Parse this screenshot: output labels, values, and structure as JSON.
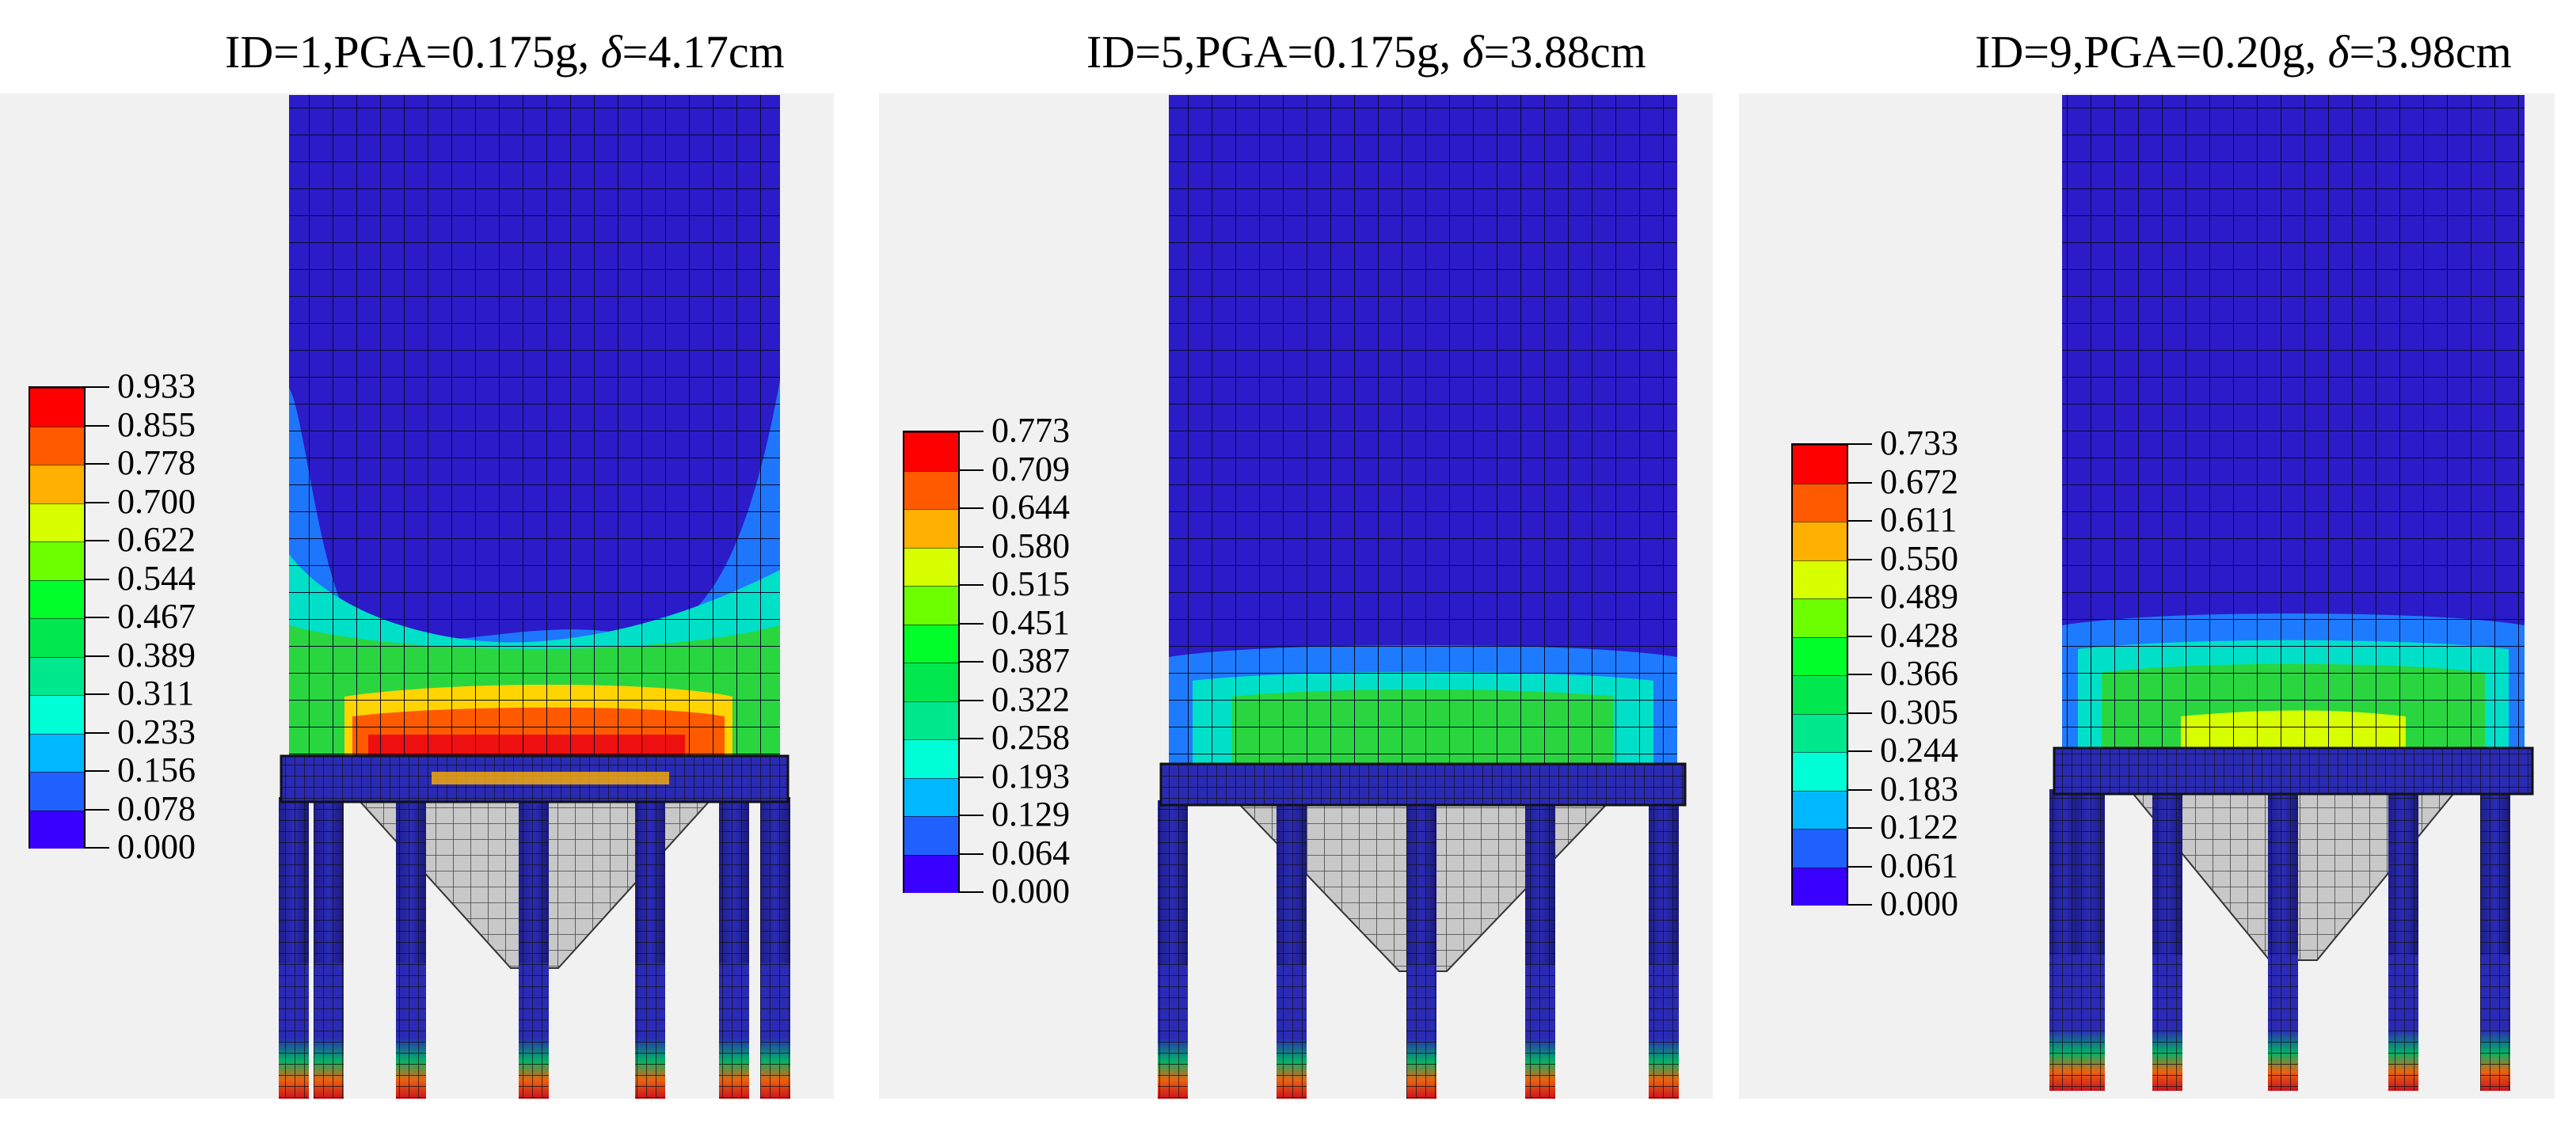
{
  "panels": [
    {
      "title": "ID=1,PGA=0.175g, δ=4.17cm",
      "title_parts": {
        "prefix": "ID=1,PGA=0.175g, ",
        "symbol": "δ",
        "value": "=4.17cm"
      },
      "legend": [
        "0.933",
        "0.855",
        "0.778",
        "0.700",
        "0.622",
        "0.544",
        "0.467",
        "0.389",
        "0.311",
        "0.233",
        "0.156",
        "0.078",
        "0.000"
      ]
    },
    {
      "title": "ID=5,PGA=0.175g, δ=3.88cm",
      "title_parts": {
        "prefix": "ID=5,PGA=0.175g, ",
        "symbol": "δ",
        "value": "=3.88cm"
      },
      "legend": [
        "0.773",
        "0.709",
        "0.644",
        "0.580",
        "0.515",
        "0.451",
        "0.387",
        "0.322",
        "0.258",
        "0.193",
        "0.129",
        "0.064",
        "0.000"
      ]
    },
    {
      "title": "ID=9,PGA=0.20g, δ=3.98cm",
      "title_parts": {
        "prefix": "ID=9,PGA=0.20g, ",
        "symbol": "δ",
        "value": "=3.98cm"
      },
      "legend": [
        "0.733",
        "0.672",
        "0.611",
        "0.550",
        "0.489",
        "0.428",
        "0.366",
        "0.305",
        "0.244",
        "0.183",
        "0.122",
        "0.061",
        "0.000"
      ]
    }
  ],
  "colormap": [
    "#ff0000",
    "#ff5a00",
    "#ffb000",
    "#d8ff00",
    "#6cff00",
    "#00ff2a",
    "#00e84e",
    "#00e88e",
    "#00ffd6",
    "#00b8ff",
    "#2060ff",
    "#3a00ff"
  ]
}
